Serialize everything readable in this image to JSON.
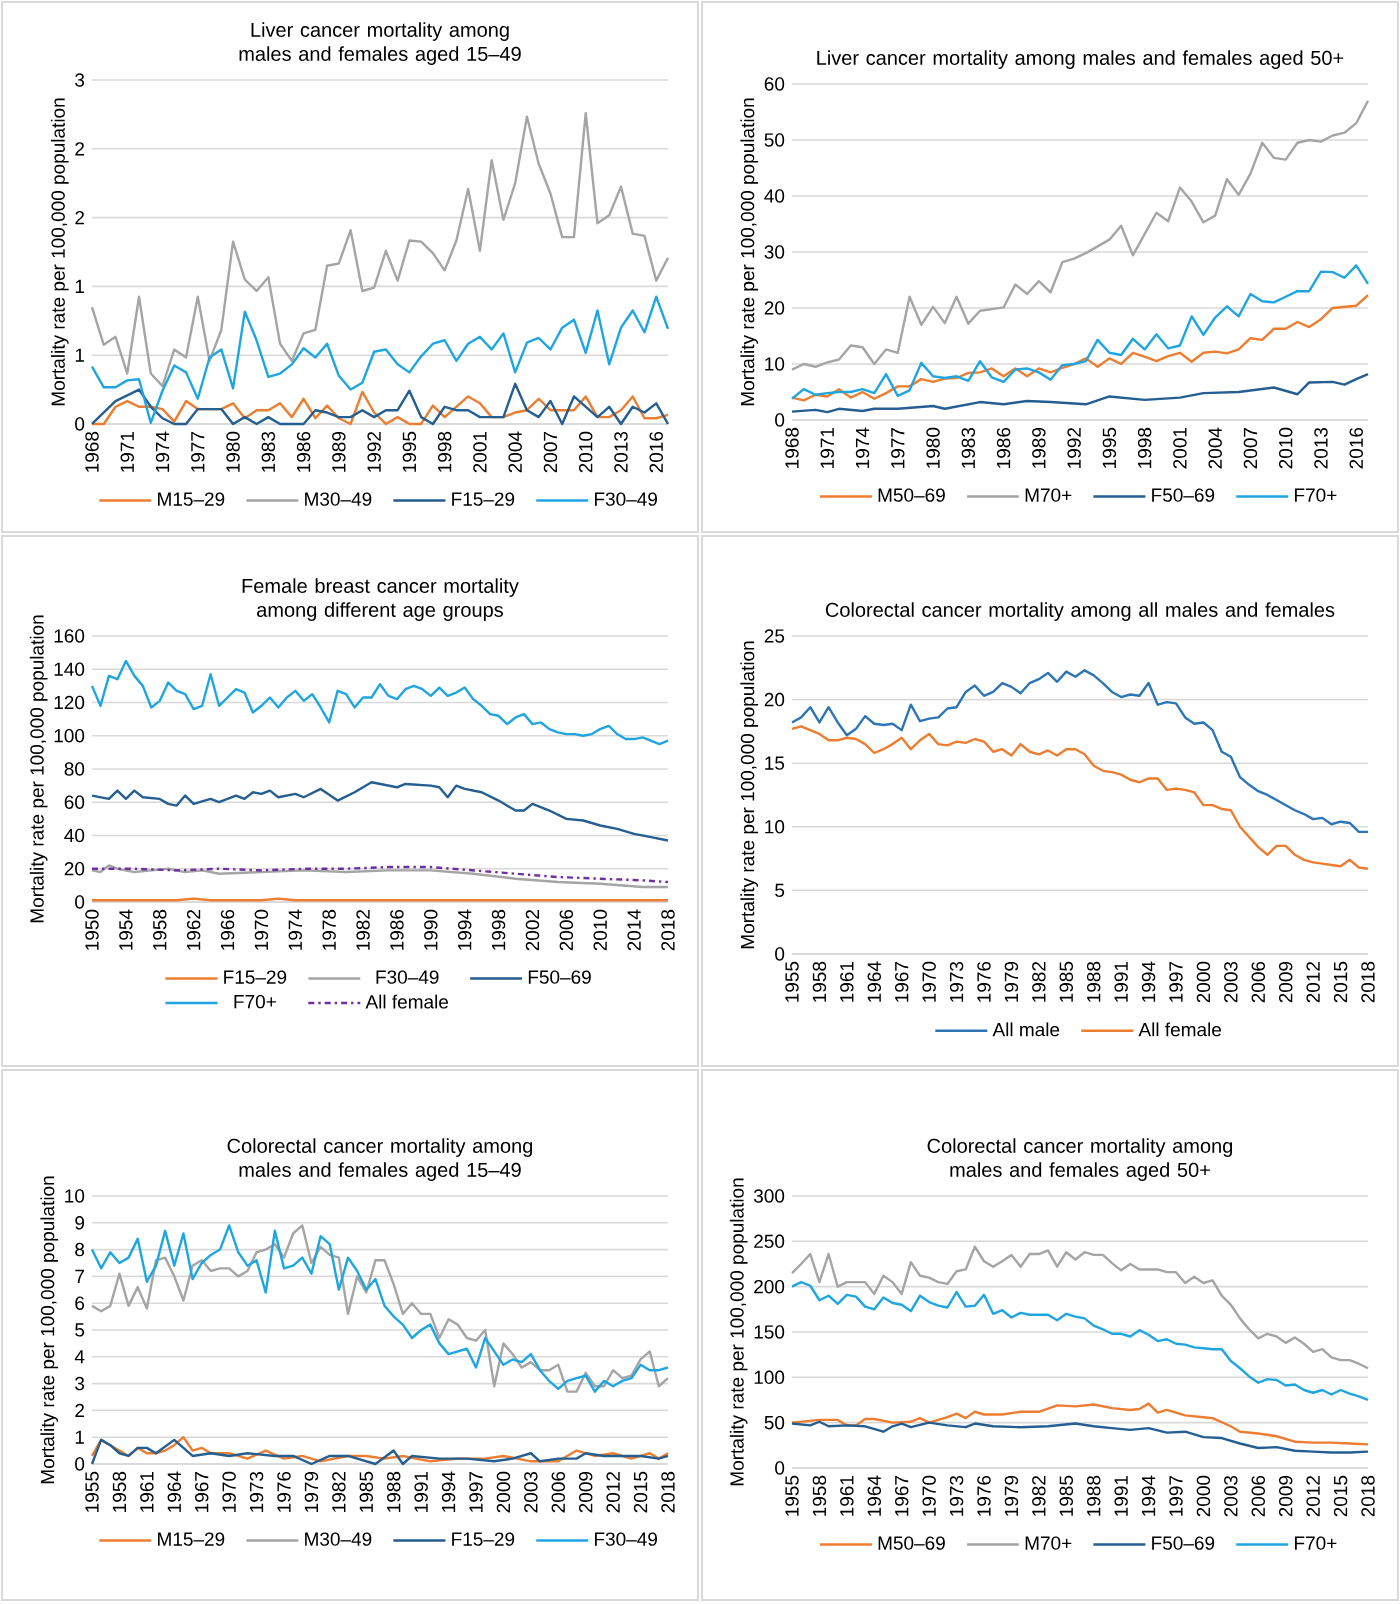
{
  "chart_data": [
    {
      "type": "line",
      "title": "Liver cancer mortality among males and females aged 15–49",
      "ylabel": "Mortality rate per 100,000 population",
      "grid": "y",
      "legend": "bottom",
      "x": [
        1968,
        1969,
        1970,
        1971,
        1972,
        1973,
        1974,
        1975,
        1976,
        1977,
        1978,
        1979,
        1980,
        1981,
        1982,
        1983,
        1984,
        1985,
        1986,
        1987,
        1988,
        1989,
        1990,
        1991,
        1992,
        1993,
        1994,
        1995,
        1996,
        1997,
        1998,
        1999,
        2000,
        2001,
        2002,
        2003,
        2004,
        2005,
        2006,
        2007,
        2008,
        2009,
        2010,
        2011,
        2012,
        2013,
        2014,
        2015,
        2016,
        2017
      ],
      "xlim": [
        1968,
        2017
      ],
      "xticks": [
        1968,
        1971,
        1974,
        1977,
        1980,
        1983,
        1986,
        1989,
        1992,
        1995,
        1998,
        2001,
        2004,
        2007,
        2010,
        2013,
        2016
      ],
      "ylim": [
        0,
        3
      ],
      "yticks": [
        0,
        {
          "value": 0.6,
          "label": "1"
        },
        {
          "value": 1.2,
          "label": "1"
        },
        {
          "value": 1.8,
          "label": "2"
        },
        {
          "value": 2.4,
          "label": "2"
        },
        3
      ],
      "series": [
        {
          "name": "M15–29",
          "color": "#ed7d31",
          "values": [
            0,
            0,
            0.15,
            0.2,
            0.15,
            0.15,
            0.13,
            0.02,
            0.2,
            0.13,
            null,
            0.13,
            0.18,
            0.05,
            0.12,
            0.12,
            0.18,
            0.06,
            0.22,
            0.05,
            0.16,
            0.05,
            0,
            0.28,
            0.1,
            0,
            0.06,
            0,
            0,
            0.16,
            0.06,
            0.15,
            0.24,
            0.18,
            0.06,
            0.06,
            0.1,
            0.12,
            0.22,
            0.12,
            0.12,
            0.12,
            0.24,
            0.06,
            0.06,
            0.12,
            0.24,
            0.05,
            0.05,
            0.08
          ]
        },
        {
          "name": "M30–49",
          "color": "#a5a5a5",
          "values": [
            1.02,
            0.69,
            0.76,
            0.44,
            1.11,
            0.44,
            0.33,
            0.65,
            0.58,
            1.11,
            0.55,
            0.82,
            1.59,
            1.26,
            1.16,
            1.28,
            0.7,
            0.55,
            0.79,
            0.82,
            1.38,
            1.4,
            1.69,
            1.16,
            1.19,
            1.51,
            1.25,
            1.6,
            1.59,
            1.49,
            1.34,
            1.6,
            2.05,
            1.51,
            2.3,
            1.78,
            2.1,
            2.68,
            2.27,
            2.01,
            1.63,
            1.63,
            2.71,
            1.75,
            1.82,
            2.07,
            1.66,
            1.64,
            1.25,
            1.45
          ]
        },
        {
          "name": "F15–29",
          "color": "#255e91",
          "values": [
            0,
            0.1,
            0.2,
            0.25,
            0.3,
            0.15,
            0.05,
            0,
            0,
            0.13,
            0.13,
            0.13,
            0,
            0.06,
            0,
            0.06,
            0,
            0,
            0,
            0.12,
            0.1,
            0.06,
            0.06,
            0.12,
            0.06,
            0.12,
            0.12,
            0.29,
            0.06,
            0,
            0.15,
            0.12,
            0.12,
            0.06,
            0.06,
            0.06,
            0.35,
            0.12,
            0.06,
            0.2,
            0,
            0.24,
            0.15,
            0.06,
            0.15,
            0,
            0.15,
            0.1,
            0.18,
            0
          ]
        },
        {
          "name": "F30–49",
          "color": "#1fa6e0",
          "values": [
            0.5,
            0.32,
            0.32,
            0.38,
            0.39,
            0.01,
            0.29,
            0.51,
            0.45,
            0.22,
            0.58,
            0.65,
            0.31,
            0.98,
            0.73,
            0.41,
            0.44,
            0.52,
            0.66,
            0.58,
            0.7,
            0.42,
            0.3,
            0.36,
            0.63,
            0.65,
            0.52,
            0.45,
            0.59,
            0.7,
            0.73,
            0.55,
            0.7,
            0.76,
            0.65,
            0.79,
            0.45,
            0.71,
            0.75,
            0.65,
            0.84,
            0.91,
            0.62,
            0.99,
            0.52,
            0.84,
            0.99,
            0.8,
            1.11,
            0.83
          ]
        }
      ]
    },
    {
      "type": "line",
      "title": "Liver cancer mortality among males and females aged 50+",
      "ylabel": "Mortality rate per 100,000 population",
      "grid": "y",
      "legend": "bottom",
      "x": [
        1968,
        1969,
        1970,
        1971,
        1972,
        1973,
        1974,
        1975,
        1976,
        1977,
        1978,
        1979,
        1980,
        1981,
        1982,
        1983,
        1984,
        1985,
        1986,
        1987,
        1988,
        1989,
        1990,
        1991,
        1992,
        1993,
        1994,
        1995,
        1996,
        1997,
        1998,
        1999,
        2000,
        2001,
        2002,
        2003,
        2004,
        2005,
        2006,
        2007,
        2008,
        2009,
        2010,
        2011,
        2012,
        2013,
        2014,
        2015,
        2016,
        2017
      ],
      "xlim": [
        1968,
        2017
      ],
      "xticks": [
        1968,
        1971,
        1974,
        1977,
        1980,
        1983,
        1986,
        1989,
        1992,
        1995,
        1998,
        2001,
        2004,
        2007,
        2010,
        2013,
        2016
      ],
      "ylim": [
        0,
        60
      ],
      "yticks": [
        0,
        10,
        20,
        30,
        40,
        50,
        60
      ],
      "series": [
        {
          "name": "M50–69",
          "color": "#ed7d31",
          "values": [
            4,
            3.5,
            4.5,
            4.2,
            5.5,
            4,
            5,
            3.8,
            4.8,
            6,
            6,
            7.3,
            6.8,
            7.4,
            7.5,
            8.4,
            8.5,
            9.2,
            7.8,
            9.2,
            7.8,
            9.2,
            8.5,
            9.3,
            10,
            11,
            9.5,
            11,
            10,
            12,
            11.3,
            10.5,
            11.4,
            12,
            10.4,
            12,
            12.2,
            11.9,
            12.6,
            14.6,
            14.3,
            16.3,
            16.3,
            17.5,
            16.6,
            18,
            20,
            20.2,
            20.4,
            22.3
          ]
        },
        {
          "name": "M70+",
          "color": "#a5a5a5",
          "values": [
            9,
            10,
            9.5,
            10.3,
            10.8,
            13.3,
            13,
            10,
            12.6,
            12,
            22,
            17,
            20.2,
            17.3,
            22,
            17.2,
            19.5,
            19.8,
            20.1,
            24.2,
            22.5,
            24.8,
            22.8,
            28.2,
            28.8,
            29.8,
            31,
            32.2,
            34.7,
            29.4,
            33.2,
            37,
            35.5,
            41.5,
            39,
            35.3,
            36.5,
            43,
            40.2,
            44,
            49.5,
            46.8,
            46.5,
            49.5,
            50,
            49.7,
            50.8,
            51.3,
            53,
            57
          ]
        },
        {
          "name": "F50–69",
          "color": "#255e91",
          "x": [
            1968,
            1970,
            1971,
            1972,
            1974,
            1975,
            1977,
            1980,
            1981,
            1984,
            1986,
            1988,
            1990,
            1993,
            1995,
            1998,
            2001,
            2003,
            2006,
            2009,
            2011,
            2012,
            2014,
            2015,
            2016,
            2017
          ],
          "values": [
            1.5,
            1.8,
            1.4,
            2,
            1.6,
            2,
            2,
            2.5,
            2,
            3.2,
            2.8,
            3.4,
            3.2,
            2.8,
            4.2,
            3.6,
            4,
            4.8,
            5,
            5.8,
            4.6,
            6.7,
            6.8,
            6.3,
            7.3,
            8.2
          ]
        },
        {
          "name": "F70+",
          "color": "#1fa6e0",
          "values": [
            3.8,
            5.5,
            4.5,
            4.8,
            5,
            5,
            5.5,
            4.8,
            8.2,
            4.3,
            5.3,
            10.2,
            7.8,
            7.5,
            7.8,
            7,
            10.5,
            7.6,
            6.8,
            9,
            9.2,
            8.5,
            7.2,
            9.8,
            10,
            10.5,
            14.3,
            12,
            11.6,
            14.5,
            12.6,
            15.3,
            12.8,
            13.3,
            18.5,
            15.2,
            18.3,
            20.3,
            18.5,
            22.5,
            21.2,
            21,
            22,
            23,
            23,
            26.5,
            26.4,
            25.4,
            27.6,
            24.3
          ]
        }
      ]
    },
    {
      "type": "line",
      "title": "Female breast cancer mortality among different age groups",
      "ylabel": "Mortality rate per 100,000 population",
      "grid": "y",
      "legend": "bottom",
      "x": [
        1950,
        1951,
        1952,
        1953,
        1954,
        1955,
        1956,
        1957,
        1958,
        1959,
        1960,
        1961,
        1962,
        1963,
        1964,
        1965,
        1966,
        1967,
        1968,
        1969,
        1970,
        1971,
        1972,
        1973,
        1974,
        1975,
        1976,
        1977,
        1978,
        1979,
        1980,
        1981,
        1982,
        1983,
        1984,
        1985,
        1986,
        1987,
        1988,
        1989,
        1990,
        1991,
        1992,
        1993,
        1994,
        1995,
        1996,
        1997,
        1998,
        1999,
        2000,
        2001,
        2002,
        2003,
        2004,
        2005,
        2006,
        2007,
        2008,
        2009,
        2010,
        2011,
        2012,
        2013,
        2014,
        2015,
        2016,
        2017,
        2018
      ],
      "xlim": [
        1950,
        2018
      ],
      "xticks": [
        1950,
        1954,
        1958,
        1962,
        1966,
        1970,
        1974,
        1978,
        1982,
        1986,
        1990,
        1994,
        1998,
        2002,
        2006,
        2010,
        2014,
        2018
      ],
      "ylim": [
        0,
        160
      ],
      "yticks": [
        0,
        20,
        40,
        60,
        80,
        100,
        120,
        140,
        160
      ],
      "series": [
        {
          "name": "F15–29",
          "color": "#ed7d31",
          "x": [
            1950,
            1958,
            1960,
            1962,
            1964,
            1968,
            1970,
            1972,
            1974,
            1990,
            2018
          ],
          "values": [
            1,
            1,
            1,
            2,
            1,
            1,
            1,
            2,
            1,
            1,
            1
          ]
        },
        {
          "name": "F30–49",
          "color": "#a5a5a5",
          "x": [
            1950,
            1951,
            1952,
            1953,
            1955,
            1957,
            1959,
            1961,
            1963,
            1965,
            1970,
            1975,
            1980,
            1985,
            1990,
            1995,
            2000,
            2005,
            2010,
            2015,
            2018
          ],
          "values": [
            19,
            18,
            22,
            20,
            18,
            19,
            20,
            18,
            19,
            17,
            18,
            19,
            18,
            19,
            19,
            17,
            14,
            12,
            11,
            9,
            9
          ]
        },
        {
          "name": "F50–69",
          "color": "#255e91",
          "x": [
            1950,
            1952,
            1953,
            1954,
            1955,
            1956,
            1958,
            1959,
            1960,
            1961,
            1962,
            1964,
            1965,
            1967,
            1968,
            1969,
            1970,
            1971,
            1972,
            1974,
            1975,
            1977,
            1979,
            1981,
            1983,
            1984,
            1985,
            1986,
            1987,
            1990,
            1991,
            1992,
            1993,
            1994,
            1996,
            1998,
            2000,
            2001,
            2002,
            2004,
            2006,
            2008,
            2010,
            2012,
            2014,
            2016,
            2018
          ],
          "values": [
            64,
            62,
            67,
            62,
            67,
            63,
            62,
            59,
            58,
            64,
            59,
            62,
            60,
            64,
            62,
            66,
            65,
            67,
            63,
            65,
            63,
            68,
            61,
            66,
            72,
            71,
            70,
            69,
            71,
            70,
            69,
            63,
            70,
            68,
            66,
            61,
            55,
            55,
            59,
            55,
            50,
            49,
            46,
            44,
            41,
            39,
            37
          ]
        },
        {
          "name": "F70+",
          "color": "#1fa6e0",
          "values": [
            130,
            118,
            136,
            134,
            145,
            136,
            130,
            117,
            121,
            132,
            127,
            125,
            116,
            118,
            137,
            118,
            123,
            128,
            126,
            114,
            118,
            123,
            117,
            123,
            127,
            121,
            125,
            117,
            108,
            127,
            125,
            117,
            123,
            123,
            131,
            124,
            122,
            128,
            130,
            128,
            124,
            129,
            124,
            126,
            129,
            122,
            118,
            113,
            112,
            107,
            111,
            113,
            107,
            108,
            104,
            102,
            101,
            101,
            100,
            101,
            104,
            106,
            101,
            98,
            98,
            99,
            97,
            95,
            97
          ]
        },
        {
          "name": "All female",
          "color": "#7030a0",
          "line_style": "dashdot",
          "x": [
            1950,
            1955,
            1960,
            1965,
            1970,
            1975,
            1980,
            1985,
            1990,
            1995,
            2000,
            2005,
            2010,
            2015,
            2018
          ],
          "values": [
            20,
            20,
            19,
            20,
            19,
            20,
            20,
            21,
            21,
            19,
            17,
            15,
            14,
            13,
            12
          ]
        }
      ]
    },
    {
      "type": "line",
      "title": "Colorectal cancer mortality among all males and females",
      "ylabel": "Mortality rate per 100,000 population",
      "grid": "y",
      "legend": "bottom",
      "x": [
        1955,
        1956,
        1957,
        1958,
        1959,
        1960,
        1961,
        1962,
        1963,
        1964,
        1965,
        1966,
        1967,
        1968,
        1969,
        1970,
        1971,
        1972,
        1973,
        1974,
        1975,
        1976,
        1977,
        1978,
        1979,
        1980,
        1981,
        1982,
        1983,
        1984,
        1985,
        1986,
        1987,
        1988,
        1989,
        1990,
        1991,
        1992,
        1993,
        1994,
        1995,
        1996,
        1997,
        1998,
        1999,
        2000,
        2001,
        2002,
        2003,
        2004,
        2005,
        2006,
        2007,
        2008,
        2009,
        2010,
        2011,
        2012,
        2013,
        2014,
        2015,
        2016,
        2017,
        2018
      ],
      "xlim": [
        1955,
        2018
      ],
      "xticks": [
        1955,
        1958,
        1961,
        1964,
        1967,
        1970,
        1973,
        1976,
        1979,
        1982,
        1985,
        1988,
        1991,
        1994,
        1997,
        2000,
        2003,
        2006,
        2009,
        2012,
        2015,
        2018
      ],
      "ylim": [
        0,
        25
      ],
      "yticks": [
        0,
        5,
        10,
        15,
        20,
        25
      ],
      "series": [
        {
          "name": "All male",
          "color": "#2e75b6",
          "values": [
            18.2,
            18.6,
            19.4,
            18.2,
            19.4,
            18.2,
            17.2,
            17.7,
            18.7,
            18.1,
            18.0,
            18.1,
            17.6,
            19.6,
            18.3,
            18.5,
            18.6,
            19.3,
            19.4,
            20.6,
            21.1,
            20.3,
            20.6,
            21.3,
            21.0,
            20.5,
            21.3,
            21.6,
            22.1,
            21.4,
            22.2,
            21.8,
            22.3,
            21.9,
            21.3,
            20.6,
            20.2,
            20.4,
            20.3,
            21.3,
            19.6,
            19.8,
            19.7,
            18.6,
            18.1,
            18.2,
            17.6,
            15.9,
            15.5,
            13.9,
            13.3,
            12.8,
            12.5,
            12.1,
            11.7,
            11.3,
            11.0,
            10.6,
            10.7,
            10.2,
            10.4,
            10.3,
            9.6,
            9.6
          ]
        },
        {
          "name": "All female",
          "color": "#ed7d31",
          "values": [
            17.7,
            17.9,
            17.6,
            17.3,
            16.8,
            16.8,
            17.0,
            16.9,
            16.5,
            15.8,
            16.1,
            16.5,
            17.0,
            16.1,
            16.8,
            17.3,
            16.5,
            16.4,
            16.7,
            16.6,
            16.9,
            16.7,
            15.9,
            16.1,
            15.6,
            16.5,
            15.9,
            15.7,
            16.0,
            15.6,
            16.1,
            16.1,
            15.7,
            14.8,
            14.4,
            14.3,
            14.1,
            13.7,
            13.5,
            13.8,
            13.8,
            12.9,
            13.0,
            12.9,
            12.7,
            11.7,
            11.7,
            11.4,
            11.3,
            10.0,
            9.2,
            8.4,
            7.8,
            8.5,
            8.5,
            7.8,
            7.4,
            7.2,
            7.1,
            7.0,
            6.9,
            7.4,
            6.8,
            6.7
          ]
        }
      ]
    },
    {
      "type": "line",
      "title": "Colorectal cancer mortality among males and females aged 15–49",
      "ylabel": "Mortality rate per 100,000 population",
      "grid": "y",
      "legend": "bottom",
      "x": [
        1955,
        1956,
        1957,
        1958,
        1959,
        1960,
        1961,
        1962,
        1963,
        1964,
        1965,
        1966,
        1967,
        1968,
        1969,
        1970,
        1971,
        1972,
        1973,
        1974,
        1975,
        1976,
        1977,
        1978,
        1979,
        1980,
        1981,
        1982,
        1983,
        1984,
        1985,
        1986,
        1987,
        1988,
        1989,
        1990,
        1991,
        1992,
        1993,
        1994,
        1995,
        1996,
        1997,
        1998,
        1999,
        2000,
        2001,
        2002,
        2003,
        2004,
        2005,
        2006,
        2007,
        2008,
        2009,
        2010,
        2011,
        2012,
        2013,
        2014,
        2015,
        2016,
        2017,
        2018
      ],
      "xlim": [
        1955,
        2018
      ],
      "xticks": [
        1955,
        1958,
        1961,
        1964,
        1967,
        1970,
        1973,
        1976,
        1979,
        1982,
        1985,
        1988,
        1991,
        1994,
        1997,
        2000,
        2003,
        2006,
        2009,
        2012,
        2015,
        2018
      ],
      "ylim": [
        0,
        10
      ],
      "yticks": [
        0,
        1,
        2,
        3,
        4,
        5,
        6,
        7,
        8,
        9,
        10
      ],
      "series": [
        {
          "name": "M15–29",
          "color": "#ed7d31",
          "x": [
            1955,
            1956,
            1957,
            1958,
            1959,
            1960,
            1961,
            1962,
            1963,
            1964,
            1965,
            1966,
            1967,
            1968,
            1970,
            1972,
            1974,
            1976,
            1978,
            1980,
            1983,
            1985,
            1987,
            1989,
            1992,
            1995,
            1998,
            2000,
            2003,
            2006,
            2008,
            2010,
            2012,
            2014,
            2016,
            2017,
            2018
          ],
          "values": [
            0.3,
            0.9,
            0.7,
            0.5,
            0.3,
            0.6,
            0.4,
            0.4,
            0.5,
            0.7,
            1.0,
            0.5,
            0.6,
            0.4,
            0.4,
            0.2,
            0.5,
            0.2,
            0.3,
            0.1,
            0.3,
            0.3,
            0.2,
            0.3,
            0.1,
            0.2,
            0.2,
            0.3,
            0.1,
            0.1,
            0.5,
            0.3,
            0.4,
            0.2,
            0.4,
            0.2,
            0.4
          ]
        },
        {
          "name": "M30–49",
          "color": "#a5a5a5",
          "values": [
            5.9,
            5.7,
            5.9,
            7.1,
            5.9,
            6.6,
            5.8,
            7.6,
            7.7,
            7.0,
            6.1,
            7.4,
            7.6,
            7.2,
            7.3,
            7.3,
            7.0,
            7.2,
            7.9,
            8.0,
            8.2,
            7.7,
            8.6,
            8.9,
            7.5,
            8.1,
            7.8,
            7.7,
            5.6,
            7.0,
            6.4,
            7.6,
            7.6,
            6.7,
            5.6,
            6.0,
            5.6,
            5.6,
            4.7,
            5.4,
            5.2,
            4.7,
            4.6,
            5.0,
            2.9,
            4.5,
            4.1,
            3.6,
            3.8,
            3.5,
            3.5,
            3.7,
            2.7,
            2.7,
            3.4,
            2.9,
            2.9,
            3.5,
            3.2,
            3.3,
            3.9,
            4.2,
            2.9,
            3.2
          ]
        },
        {
          "name": "F15–29",
          "color": "#255e91",
          "x": [
            1955,
            1956,
            1957,
            1958,
            1959,
            1960,
            1961,
            1962,
            1964,
            1966,
            1968,
            1970,
            1972,
            1975,
            1977,
            1979,
            1981,
            1983,
            1986,
            1988,
            1989,
            1990,
            1993,
            1996,
            1999,
            2001,
            2003,
            2004,
            2006,
            2008,
            2009,
            2011,
            2013,
            2015,
            2017,
            2018
          ],
          "values": [
            0,
            0.9,
            0.7,
            0.4,
            0.3,
            0.6,
            0.6,
            0.4,
            0.9,
            0.3,
            0.4,
            0.3,
            0.4,
            0.3,
            0.3,
            0,
            0.3,
            0.3,
            0,
            0.5,
            0,
            0.3,
            0.2,
            0.2,
            0.1,
            0.2,
            0.4,
            0.1,
            0.2,
            0.2,
            0.4,
            0.3,
            0.3,
            0.3,
            0.2,
            0.3
          ]
        },
        {
          "name": "F30–49",
          "color": "#1fa6e0",
          "values": [
            8.0,
            7.3,
            7.9,
            7.5,
            7.7,
            8.4,
            6.8,
            7.4,
            8.7,
            7.4,
            8.6,
            6.9,
            7.5,
            7.8,
            8.0,
            8.9,
            7.9,
            7.4,
            7.6,
            6.4,
            8.7,
            7.3,
            7.4,
            7.7,
            7.1,
            8.5,
            8.2,
            6.5,
            7.7,
            7.2,
            6.5,
            6.9,
            5.9,
            5.5,
            5.2,
            4.7,
            5.0,
            5.2,
            4.5,
            4.1,
            4.2,
            4.3,
            3.6,
            4.7,
            4.2,
            3.7,
            3.9,
            3.8,
            4.1,
            3.5,
            3.1,
            2.8,
            3.1,
            3.2,
            3.3,
            2.7,
            3.1,
            2.9,
            3.1,
            3.2,
            3.7,
            3.5,
            3.5,
            3.6
          ]
        }
      ]
    },
    {
      "type": "line",
      "title": "Colorectal cancer mortality among males and females aged 50+",
      "ylabel": "Mortality rate per 100,000 population",
      "grid": "y",
      "legend": "bottom",
      "x": [
        1955,
        1956,
        1957,
        1958,
        1959,
        1960,
        1961,
        1962,
        1963,
        1964,
        1965,
        1966,
        1967,
        1968,
        1969,
        1970,
        1971,
        1972,
        1973,
        1974,
        1975,
        1976,
        1977,
        1978,
        1979,
        1980,
        1981,
        1982,
        1983,
        1984,
        1985,
        1986,
        1987,
        1988,
        1989,
        1990,
        1991,
        1992,
        1993,
        1994,
        1995,
        1996,
        1997,
        1998,
        1999,
        2000,
        2001,
        2002,
        2003,
        2004,
        2005,
        2006,
        2007,
        2008,
        2009,
        2010,
        2011,
        2012,
        2013,
        2014,
        2015,
        2016,
        2017,
        2018
      ],
      "xlim": [
        1955,
        2018
      ],
      "xticks": [
        1955,
        1958,
        1961,
        1964,
        1967,
        1970,
        1973,
        1976,
        1979,
        1982,
        1985,
        1988,
        1991,
        1994,
        1997,
        2000,
        2003,
        2006,
        2009,
        2012,
        2015,
        2018
      ],
      "ylim": [
        0,
        300
      ],
      "yticks": [
        0,
        50,
        100,
        150,
        200,
        250,
        300
      ],
      "series": [
        {
          "name": "M50–69",
          "color": "#ed7d31",
          "x": [
            1955,
            1958,
            1960,
            1961,
            1962,
            1963,
            1964,
            1966,
            1968,
            1969,
            1970,
            1972,
            1973,
            1974,
            1975,
            1976,
            1978,
            1980,
            1982,
            1984,
            1986,
            1988,
            1990,
            1992,
            1993,
            1994,
            1995,
            1996,
            1998,
            2000,
            2001,
            2003,
            2004,
            2006,
            2008,
            2010,
            2012,
            2014,
            2016,
            2018
          ],
          "values": [
            50,
            53,
            53,
            47,
            47,
            54,
            54,
            50,
            51,
            55,
            50,
            56,
            60,
            55,
            62,
            59,
            59,
            62,
            62,
            69,
            68,
            70,
            66,
            64,
            65,
            71,
            61,
            64,
            58,
            56,
            55,
            46,
            40,
            38,
            35,
            29,
            28,
            28,
            27,
            26
          ]
        },
        {
          "name": "M70+",
          "color": "#a5a5a5",
          "values": [
            215,
            225,
            236,
            205,
            236,
            200,
            205,
            205,
            205,
            192,
            212,
            205,
            192,
            227,
            212,
            210,
            205,
            203,
            217,
            219,
            244,
            228,
            222,
            228,
            235,
            222,
            236,
            236,
            240,
            222,
            238,
            230,
            238,
            235,
            235,
            226,
            218,
            225,
            219,
            219,
            219,
            216,
            216,
            204,
            211,
            204,
            207,
            190,
            180,
            165,
            153,
            143,
            148,
            145,
            138,
            144,
            137,
            128,
            131,
            122,
            119,
            119,
            115,
            110
          ]
        },
        {
          "name": "F50–69",
          "color": "#255e91",
          "x": [
            1955,
            1957,
            1958,
            1959,
            1961,
            1963,
            1965,
            1966,
            1967,
            1968,
            1970,
            1972,
            1974,
            1975,
            1977,
            1980,
            1983,
            1986,
            1988,
            1990,
            1992,
            1994,
            1996,
            1998,
            2000,
            2002,
            2004,
            2006,
            2008,
            2010,
            2012,
            2014,
            2016,
            2018
          ],
          "values": [
            49,
            47,
            51,
            46,
            47,
            46,
            40,
            46,
            49,
            45,
            50,
            47,
            45,
            49,
            46,
            45,
            46,
            49,
            46,
            44,
            42,
            44,
            39,
            40,
            34,
            33,
            27,
            22,
            23,
            19,
            18,
            17,
            17,
            18
          ]
        },
        {
          "name": "F70+",
          "color": "#1fa6e0",
          "values": [
            200,
            205,
            201,
            185,
            190,
            181,
            191,
            189,
            178,
            175,
            188,
            182,
            180,
            173,
            190,
            183,
            179,
            177,
            194,
            178,
            179,
            191,
            170,
            174,
            166,
            171,
            169,
            169,
            169,
            163,
            170,
            167,
            165,
            157,
            153,
            148,
            148,
            145,
            152,
            147,
            140,
            142,
            137,
            136,
            133,
            132,
            131,
            131,
            118,
            110,
            101,
            94,
            98,
            97,
            91,
            92,
            86,
            83,
            86,
            81,
            86,
            82,
            79,
            75
          ]
        }
      ]
    }
  ]
}
